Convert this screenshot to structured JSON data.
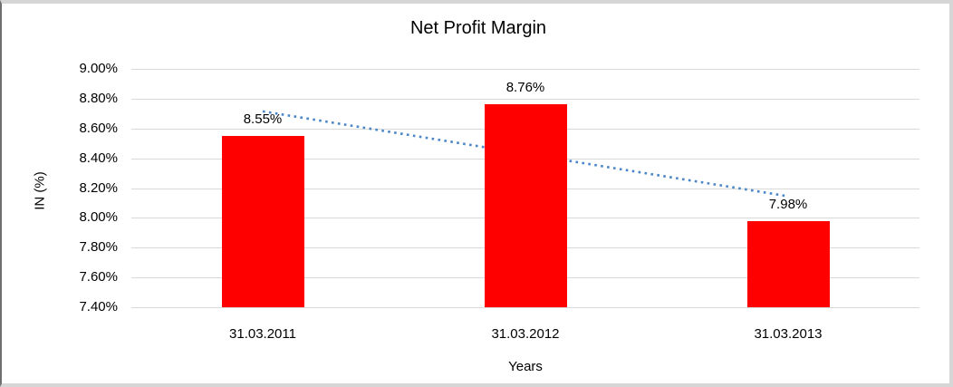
{
  "chart_data": {
    "type": "bar",
    "title": "Net Profit Margin",
    "xlabel": "Years",
    "ylabel": "IN (%)",
    "categories": [
      "31.03.2011",
      "31.03.2012",
      "31.03.2013"
    ],
    "values": [
      8.55,
      8.76,
      7.98
    ],
    "data_labels": [
      "8.55%",
      "8.76%",
      "7.98%"
    ],
    "ylim": [
      7.4,
      9.0
    ],
    "ytick_step": 0.2,
    "yticks": [
      9.0,
      8.8,
      8.6,
      8.4,
      8.2,
      8.0,
      7.8,
      7.6,
      7.4
    ],
    "ytick_labels": [
      "9.00%",
      "8.80%",
      "8.60%",
      "8.40%",
      "8.20%",
      "8.00%",
      "7.80%",
      "7.60%",
      "7.40%"
    ],
    "grid": true,
    "legend": false,
    "bar_color": "#ff0000",
    "gridline_color": "#d9d9d9",
    "text_color": "#000000",
    "trendline": {
      "type": "linear",
      "style": "dotted",
      "color": "#4a86c8",
      "trend_values": [
        8.715,
        8.43,
        8.145
      ]
    }
  }
}
